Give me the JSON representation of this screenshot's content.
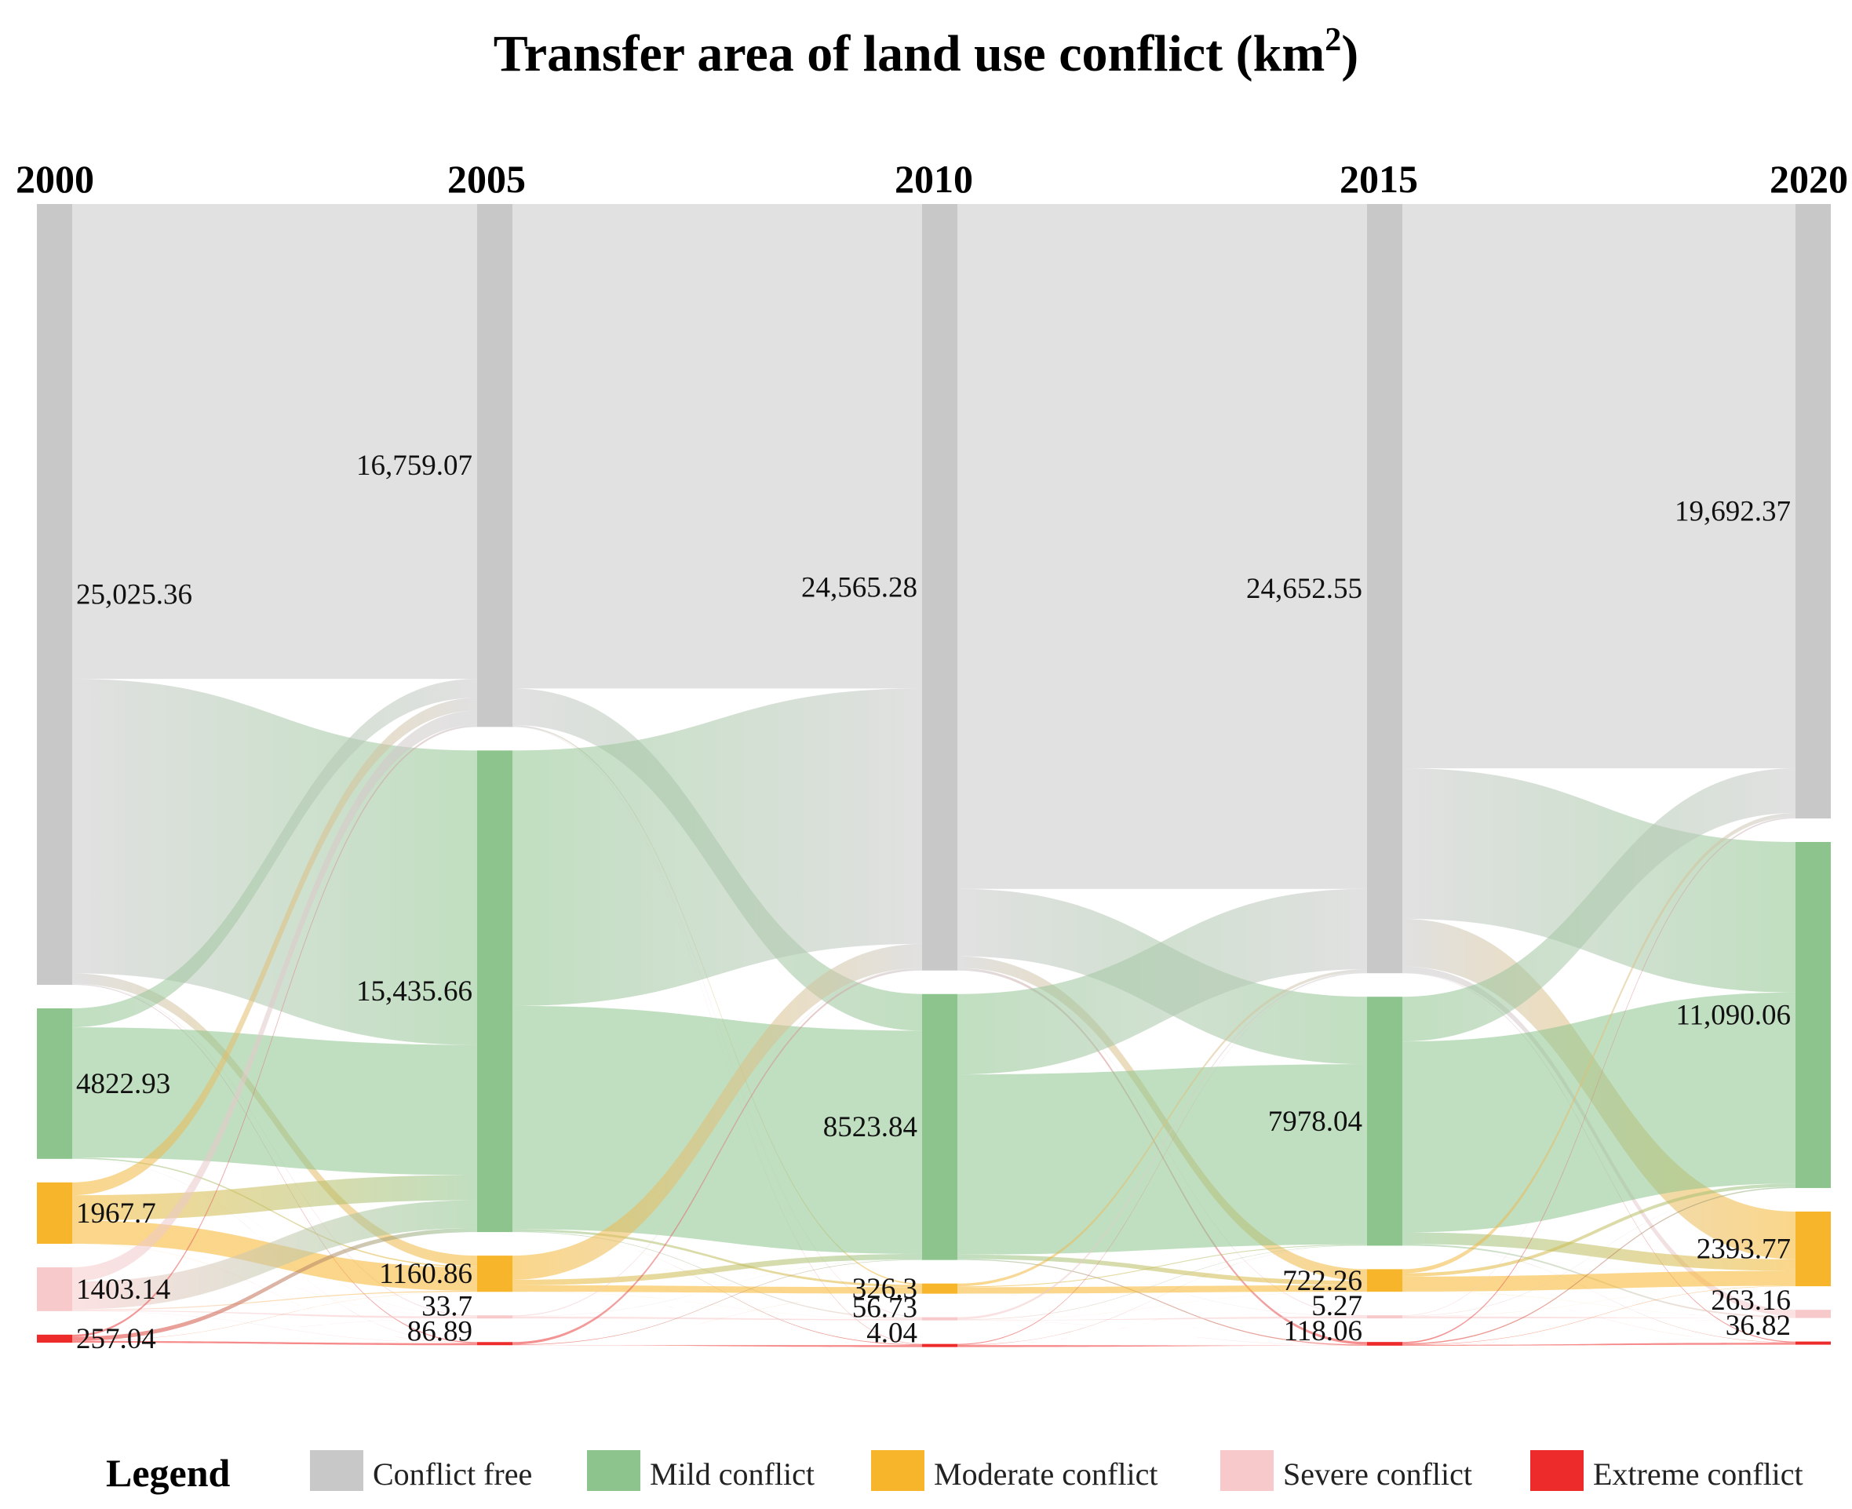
{
  "chart_data": {
    "type": "sankey",
    "title": "Transfer area of land use conflict (km",
    "title_sup": "2",
    "title_end": ")",
    "years": [
      "2000",
      "2005",
      "2010",
      "2015",
      "2020"
    ],
    "categories": [
      "Conflict free",
      "Mild conflict",
      "Moderate conflict",
      "Severe conflict",
      "Extreme conflict"
    ],
    "colors": {
      "Conflict free": "#c8c8c8",
      "Mild conflict": "#8dc48d",
      "Moderate conflict": "#f7b52b",
      "Severe conflict": "#f8c9cb",
      "Extreme conflict": "#ee2b2b"
    },
    "nodes": [
      {
        "year": "2000",
        "values": [
          25025.36,
          4822.93,
          1967.7,
          1403.14,
          257.04
        ],
        "labels": [
          "25,025.36",
          "4822.93",
          "1967.7",
          "1403.14",
          "257.04"
        ]
      },
      {
        "year": "2005",
        "values": [
          16759.07,
          15435.66,
          1160.86,
          33.7,
          86.89
        ],
        "labels": [
          "16,759.07",
          "15,435.66",
          "1160.86",
          "33.7",
          "86.89"
        ]
      },
      {
        "year": "2010",
        "values": [
          24565.28,
          8523.84,
          326.3,
          56.73,
          4.04
        ],
        "labels": [
          "24,565.28",
          "8523.84",
          "326.3",
          "56.73",
          "4.04"
        ]
      },
      {
        "year": "2015",
        "values": [
          24652.55,
          7978.04,
          722.26,
          5.27,
          118.06
        ],
        "labels": [
          "24,652.55",
          "7978.04",
          "722.26",
          "5.27",
          "118.06"
        ]
      },
      {
        "year": "2020",
        "values": [
          19692.37,
          11090.06,
          2393.77,
          263.16,
          36.82
        ],
        "labels": [
          "19,692.37",
          "11,090.06",
          "2393.77",
          "263.16",
          "36.82"
        ]
      }
    ],
    "legend": {
      "title": "Legend",
      "items": [
        "Conflict free",
        "Mild conflict",
        "Moderate conflict",
        "Severe conflict",
        "Extreme conflict"
      ]
    }
  }
}
